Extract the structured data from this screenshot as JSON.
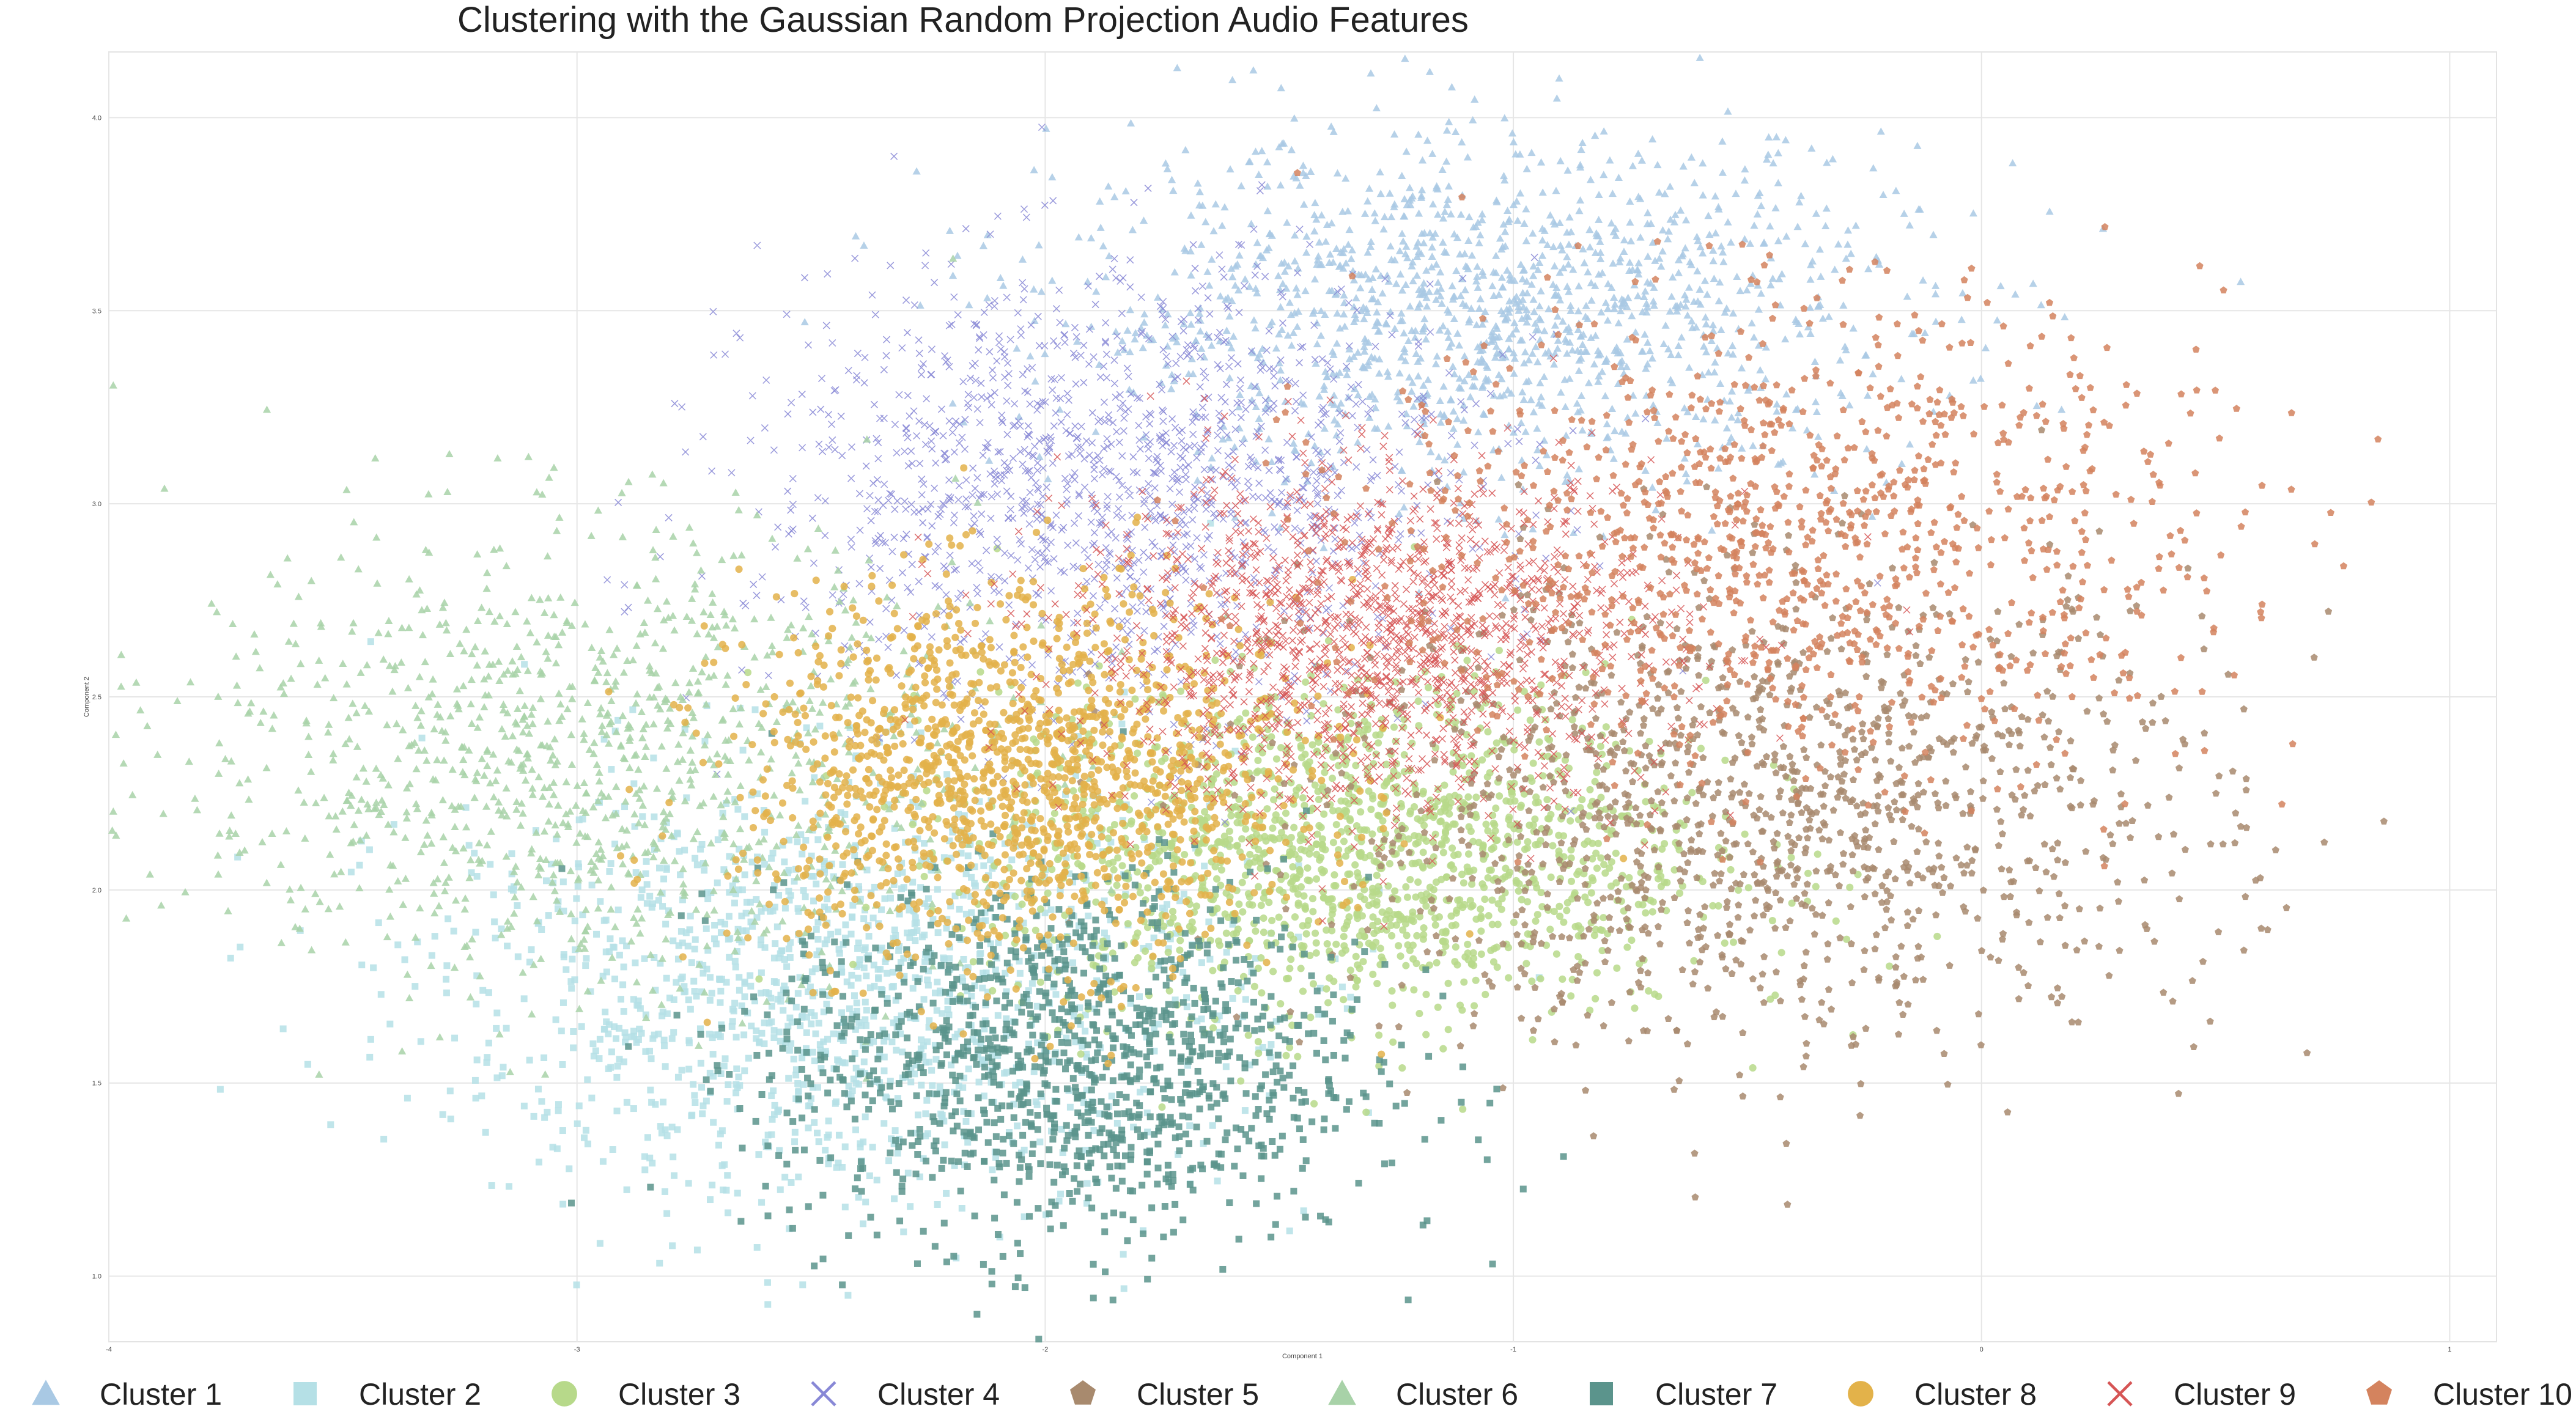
{
  "chart_data": {
    "type": "scatter",
    "title": "Clustering with the Gaussian Random Projection Audio Features",
    "xlabel": "Component 1",
    "ylabel": "Component 2",
    "xlim": [
      -4.0,
      1.1
    ],
    "ylim": [
      0.83,
      4.17
    ],
    "xticks": [
      -4,
      -3,
      -2,
      -1,
      0,
      1
    ],
    "yticks": [
      1.0,
      1.5,
      2.0,
      2.5,
      3.0,
      3.5,
      4.0
    ],
    "grid": true,
    "legend_position": "bottom",
    "series": [
      {
        "name": "Cluster 1",
        "marker": "triangle",
        "color": "#a9c9e4",
        "center": [
          -1.05,
          3.5
        ],
        "spread": [
          0.45,
          0.22
        ],
        "count": 1400
      },
      {
        "name": "Cluster 2",
        "marker": "square",
        "color": "#b5e0e6",
        "center": [
          -2.45,
          1.75
        ],
        "spread": [
          0.42,
          0.28
        ],
        "count": 1400
      },
      {
        "name": "Cluster 3",
        "marker": "circle",
        "color": "#b7d98a",
        "center": [
          -1.35,
          2.1
        ],
        "spread": [
          0.38,
          0.22
        ],
        "count": 1600
      },
      {
        "name": "Cluster 4",
        "marker": "x",
        "color": "#8888d6",
        "center": [
          -1.85,
          3.05
        ],
        "spread": [
          0.38,
          0.28
        ],
        "count": 1400
      },
      {
        "name": "Cluster 5",
        "marker": "pentagon",
        "color": "#a88a6e",
        "center": [
          -0.45,
          2.2
        ],
        "spread": [
          0.48,
          0.3
        ],
        "count": 1300
      },
      {
        "name": "Cluster 6",
        "marker": "triangle",
        "color": "#a8d2a8",
        "center": [
          -3.0,
          2.35
        ],
        "spread": [
          0.42,
          0.3
        ],
        "count": 1100
      },
      {
        "name": "Cluster 7",
        "marker": "square",
        "color": "#5b948c",
        "center": [
          -1.95,
          1.55
        ],
        "spread": [
          0.32,
          0.24
        ],
        "count": 1200
      },
      {
        "name": "Cluster 8",
        "marker": "circle",
        "color": "#e3b24a",
        "center": [
          -2.05,
          2.3
        ],
        "spread": [
          0.3,
          0.24
        ],
        "count": 1500
      },
      {
        "name": "Cluster 9",
        "marker": "x",
        "color": "#d65555",
        "center": [
          -1.3,
          2.65
        ],
        "spread": [
          0.32,
          0.22
        ],
        "count": 1600
      },
      {
        "name": "Cluster 10",
        "marker": "pentagon",
        "color": "#d4835e",
        "center": [
          -0.4,
          2.9
        ],
        "spread": [
          0.45,
          0.3
        ],
        "count": 1100
      }
    ]
  },
  "legend": {
    "items": [
      {
        "label": "Cluster 1",
        "marker": "triangle",
        "color": "#a9c9e4"
      },
      {
        "label": "Cluster 2",
        "marker": "square",
        "color": "#b5e0e6"
      },
      {
        "label": "Cluster 3",
        "marker": "circle",
        "color": "#b7d98a"
      },
      {
        "label": "Cluster 4",
        "marker": "x",
        "color": "#8888d6"
      },
      {
        "label": "Cluster 5",
        "marker": "pentagon",
        "color": "#a88a6e"
      },
      {
        "label": "Cluster 6",
        "marker": "triangle",
        "color": "#a8d2a8"
      },
      {
        "label": "Cluster 7",
        "marker": "square",
        "color": "#5b948c"
      },
      {
        "label": "Cluster 8",
        "marker": "circle",
        "color": "#e3b24a"
      },
      {
        "label": "Cluster 9",
        "marker": "x",
        "color": "#d65555"
      },
      {
        "label": "Cluster 10",
        "marker": "pentagon",
        "color": "#d4835e"
      }
    ]
  }
}
